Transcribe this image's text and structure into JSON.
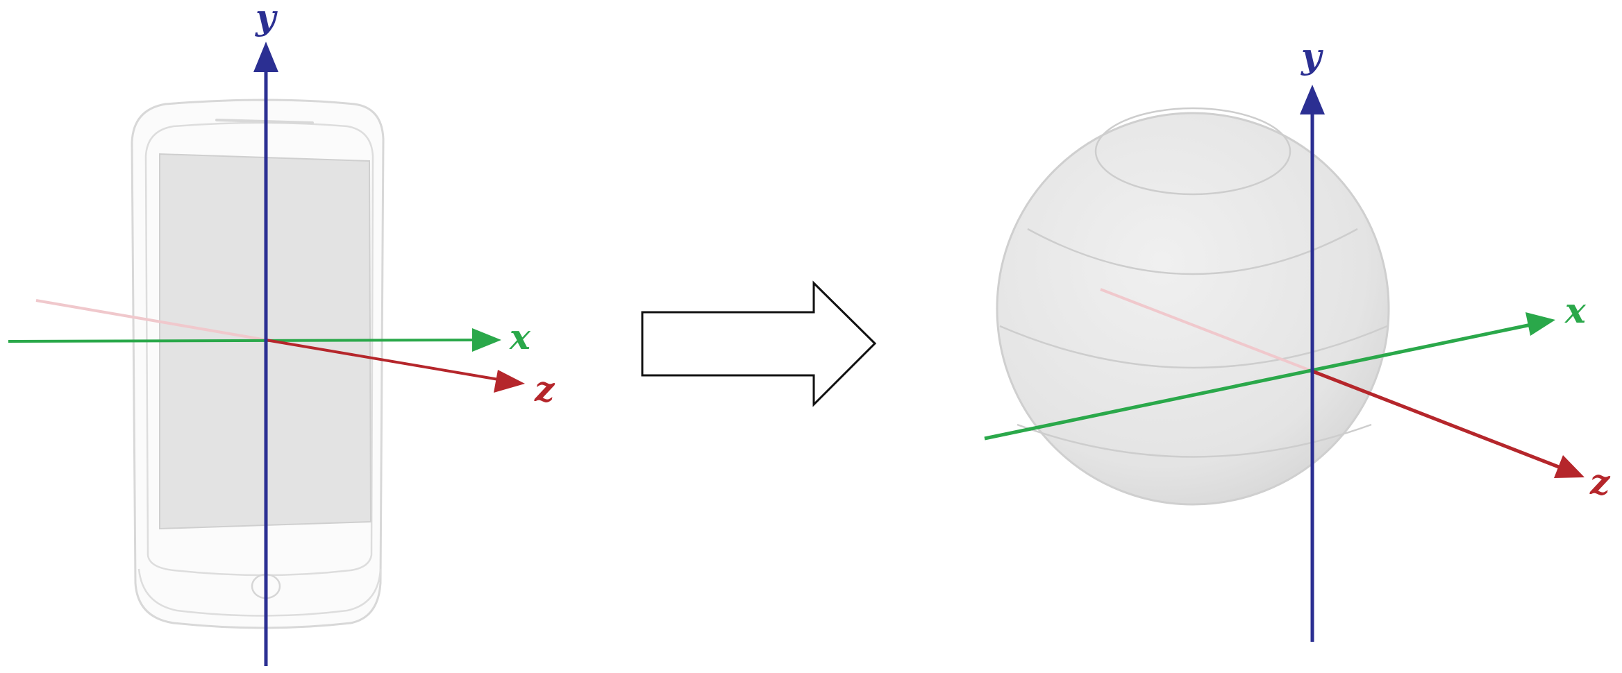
{
  "colors": {
    "x_axis": "#2aa84a",
    "y_axis": "#2b2f92",
    "z_axis": "#b5262b",
    "z_axis_faded": "#f0c8cc",
    "device_outline": "#d6d6d6",
    "device_screen": "#e3e3e3",
    "sphere_fill": "#e6e6e6",
    "sphere_stroke": "#cfcfcf",
    "arrow_stroke": "#111111",
    "arrow_fill": "#ffffff"
  },
  "left_panel": {
    "object": "phone-icon",
    "axes": {
      "x": "x",
      "y": "y",
      "z": "z"
    }
  },
  "transition": {
    "icon": "right-arrow-icon"
  },
  "right_panel": {
    "object": "sphere-icon",
    "axes": {
      "x": "x",
      "y": "y",
      "z": "z"
    }
  }
}
